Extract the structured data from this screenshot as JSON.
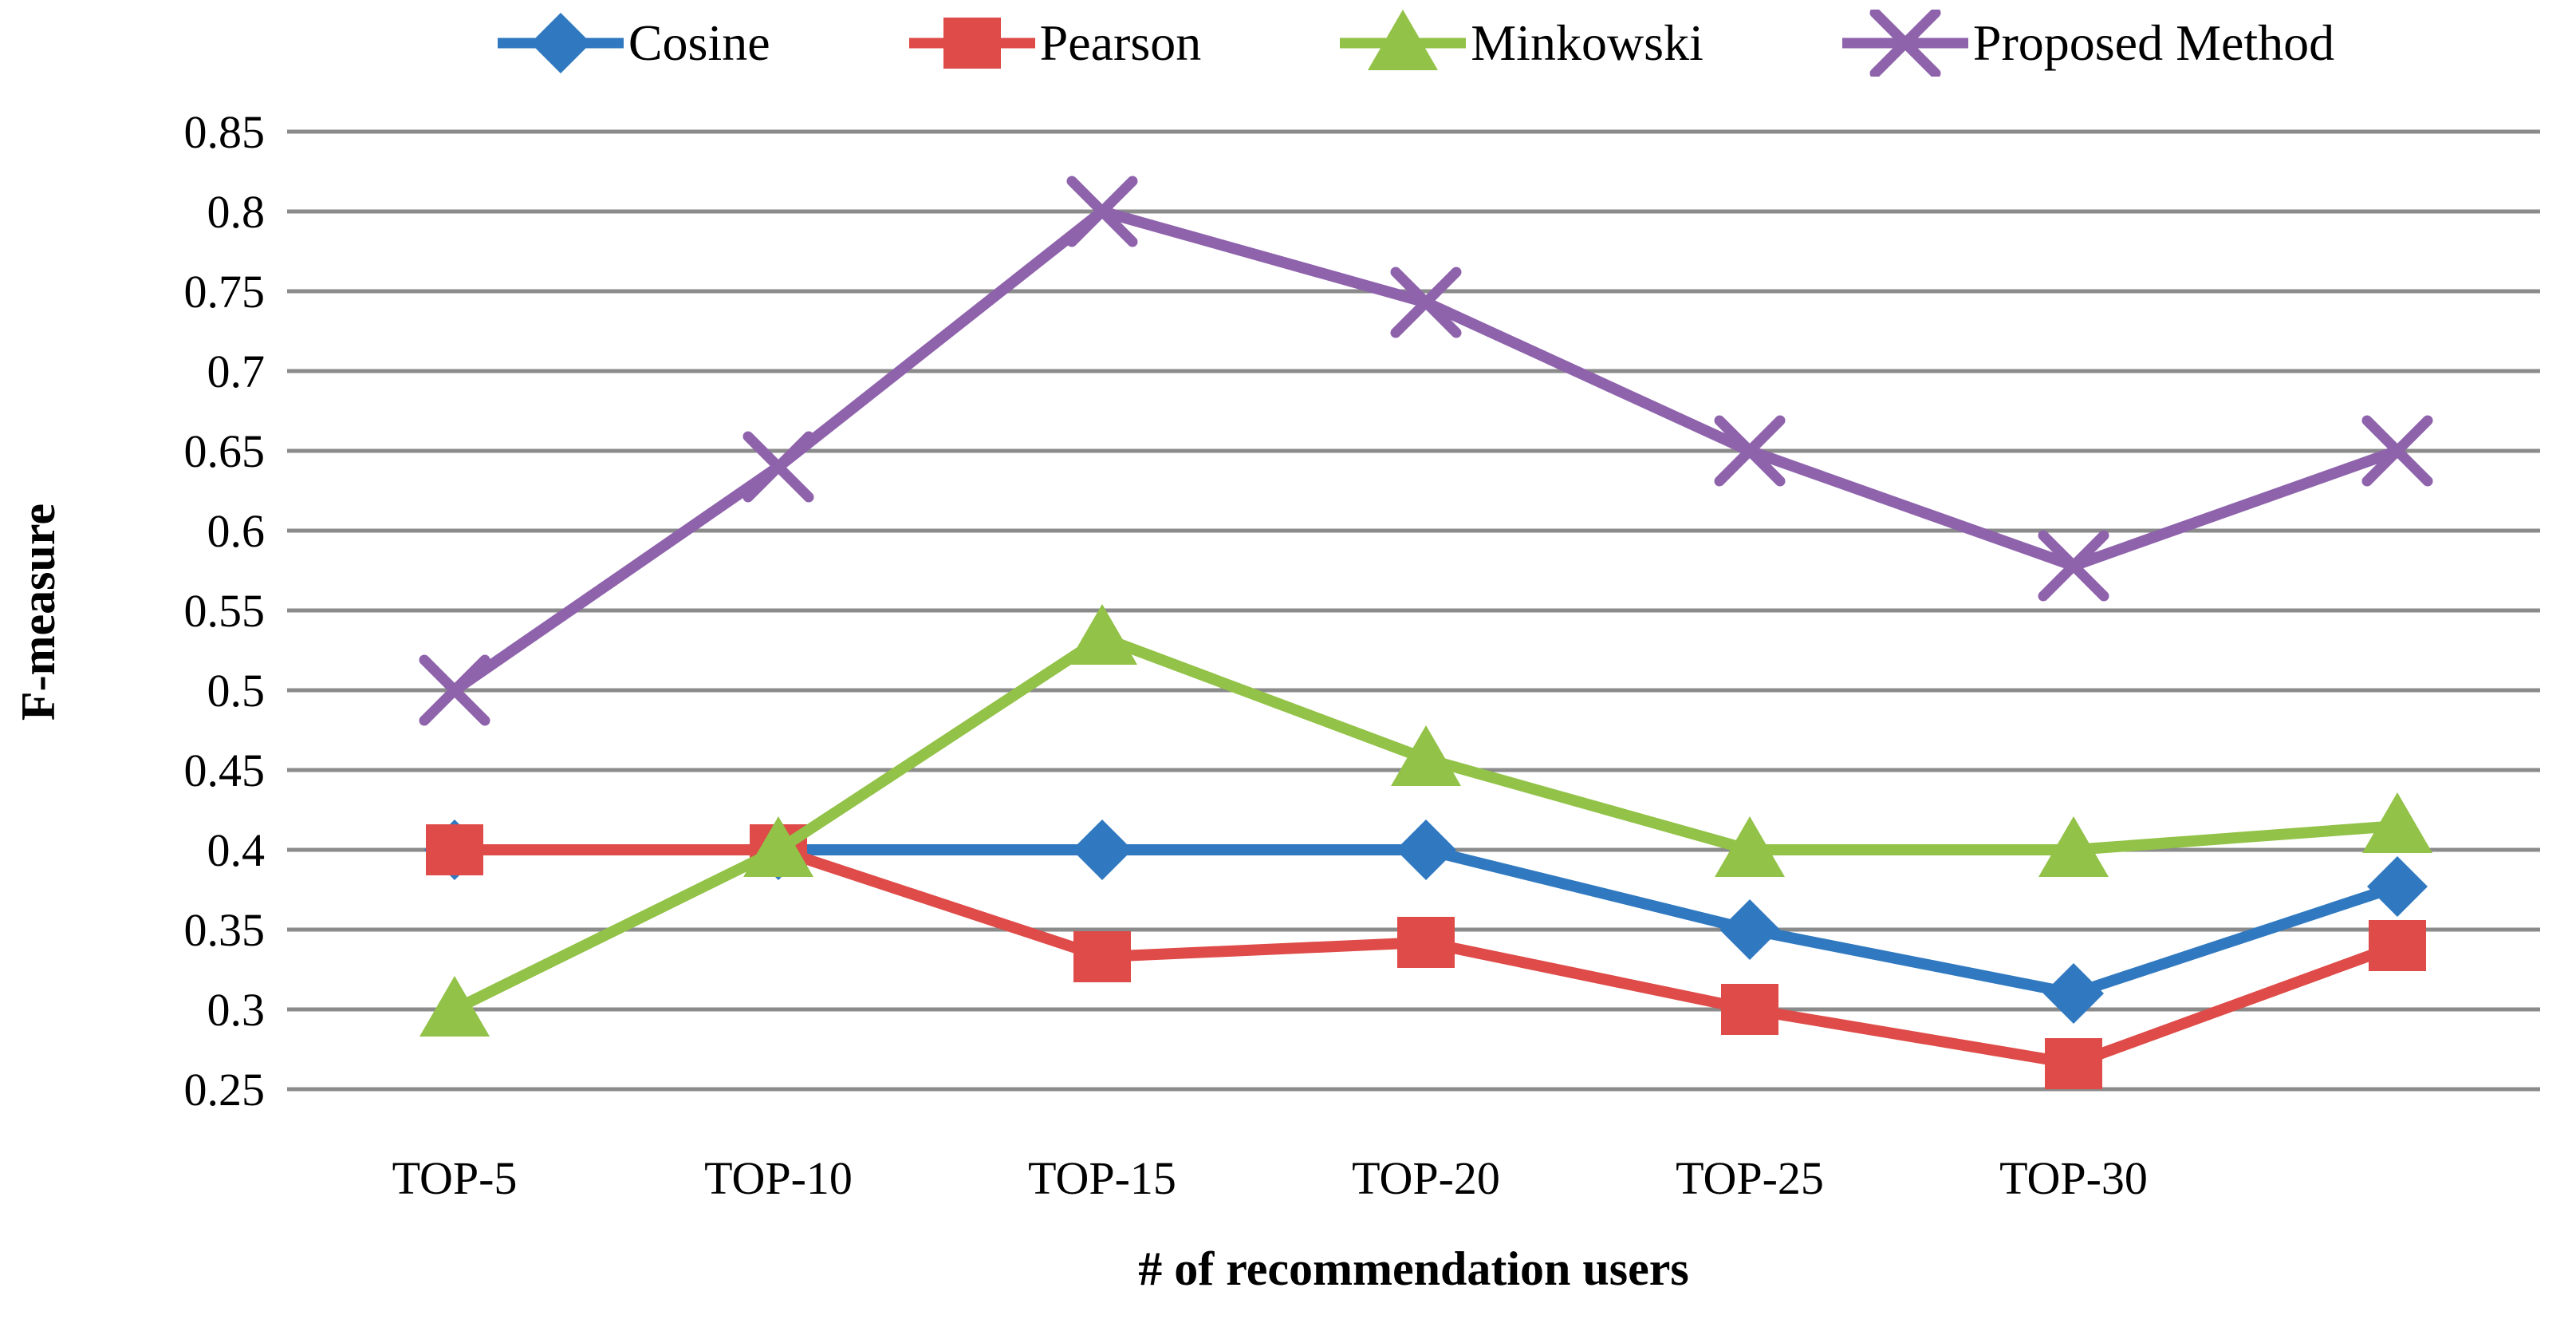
{
  "chart_data": {
    "type": "line",
    "title": "",
    "xlabel": "# of recommendation users",
    "ylabel": "F-measure",
    "categories": [
      "TOP-5",
      "TOP-10",
      "TOP-15",
      "TOP-20",
      "TOP-25",
      "TOP-30",
      ""
    ],
    "series": [
      {
        "name": "Cosine",
        "marker": "diamond",
        "color": "#3079C0",
        "values": [
          0.4,
          0.4,
          0.4,
          0.4,
          0.35,
          0.31,
          0.377
        ]
      },
      {
        "name": "Pearson",
        "marker": "square",
        "color": "#DE4B48",
        "values": [
          0.4,
          0.4,
          0.333,
          0.342,
          0.3,
          0.266,
          0.34
        ]
      },
      {
        "name": "Minkowski",
        "marker": "triangle",
        "color": "#92C247",
        "values": [
          0.3,
          0.4,
          0.533,
          0.457,
          0.4,
          0.4,
          0.415
        ]
      },
      {
        "name": "Proposed Method",
        "marker": "x",
        "color": "#8E63AC",
        "values": [
          0.5,
          0.64,
          0.8,
          0.743,
          0.65,
          0.578,
          0.65
        ]
      }
    ],
    "yticks": [
      "0.85",
      "0.8",
      "0.75",
      "0.7",
      "0.65",
      "0.6",
      "0.55",
      "0.5",
      "0.45",
      "0.4",
      "0.35",
      "0.3",
      "0.25"
    ],
    "ylim": [
      0.25,
      0.85
    ],
    "grid": true,
    "legend_position": "top",
    "gridline_color": "#8B8B8B",
    "text_color": "#000000",
    "background_color": "#FFFFFF"
  }
}
